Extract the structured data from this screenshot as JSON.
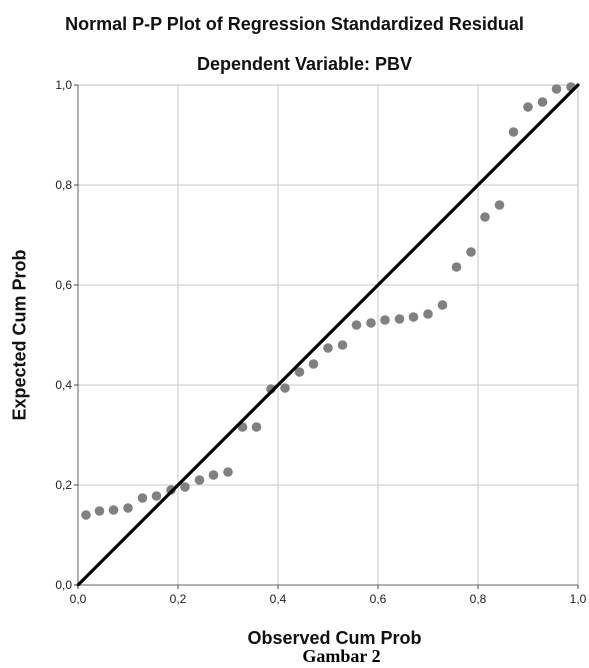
{
  "chart_data": {
    "type": "scatter",
    "title": "Normal P-P Plot of Regression Standardized Residual",
    "subtitle": "Dependent Variable: PBV",
    "xlabel": "Observed Cum Prob",
    "ylabel": "Expected Cum Prob",
    "xlim": [
      0,
      1
    ],
    "ylim": [
      0,
      1
    ],
    "xticks": [
      "0,0",
      "0,2",
      "0,4",
      "0,6",
      "0,8",
      "1,0"
    ],
    "yticks": [
      "0,0",
      "0,2",
      "0,4",
      "0,6",
      "0,8",
      "1,0"
    ],
    "grid": true,
    "reference_line": {
      "from": [
        0,
        0
      ],
      "to": [
        1,
        1
      ],
      "color": "#000000"
    },
    "point_color": "#808080",
    "points": [
      [
        0.016,
        0.14
      ],
      [
        0.043,
        0.148
      ],
      [
        0.071,
        0.15
      ],
      [
        0.1,
        0.154
      ],
      [
        0.129,
        0.174
      ],
      [
        0.157,
        0.178
      ],
      [
        0.186,
        0.19
      ],
      [
        0.214,
        0.196
      ],
      [
        0.243,
        0.21
      ],
      [
        0.271,
        0.22
      ],
      [
        0.3,
        0.226
      ],
      [
        0.329,
        0.316
      ],
      [
        0.357,
        0.316
      ],
      [
        0.386,
        0.392
      ],
      [
        0.414,
        0.394
      ],
      [
        0.443,
        0.426
      ],
      [
        0.471,
        0.442
      ],
      [
        0.5,
        0.474
      ],
      [
        0.529,
        0.48
      ],
      [
        0.557,
        0.52
      ],
      [
        0.586,
        0.524
      ],
      [
        0.614,
        0.53
      ],
      [
        0.643,
        0.532
      ],
      [
        0.671,
        0.536
      ],
      [
        0.7,
        0.542
      ],
      [
        0.729,
        0.56
      ],
      [
        0.757,
        0.636
      ],
      [
        0.786,
        0.666
      ],
      [
        0.814,
        0.736
      ],
      [
        0.843,
        0.76
      ],
      [
        0.871,
        0.906
      ],
      [
        0.9,
        0.956
      ],
      [
        0.929,
        0.966
      ],
      [
        0.957,
        0.992
      ],
      [
        0.986,
        0.996
      ]
    ]
  },
  "caption": "Gambar 2"
}
